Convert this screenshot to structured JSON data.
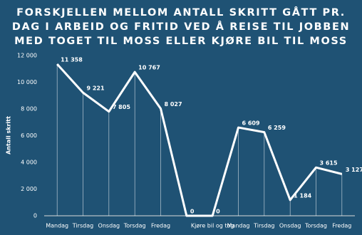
{
  "chart_data": {
    "type": "line",
    "title": [
      "FORSKJELLEN MELLOM ANTALL SKRITT GÅTT PR.",
      "DAG I ARBEID OG FRITID VED Å REISE TIL JOBBEN",
      "MED TOGET TIL MOSS ELLER KJØRE BIL TIL MOSS"
    ],
    "y_label": "Antall skritt",
    "categories": [
      "Mandag",
      "Tirsdag",
      "Onsdag",
      "Torsdag",
      "Fredag",
      null,
      "Kjøre bil og tog",
      "Mandag",
      "Tirsdag",
      "Onsdag",
      "Torsdag",
      "Fredag"
    ],
    "values": [
      11358,
      9221,
      7805,
      10767,
      8027,
      0,
      0,
      6609,
      6259,
      1184,
      3615,
      3127
    ],
    "value_labels": [
      "11 358",
      "9 221",
      "7 805",
      "10 767",
      "8 027",
      "0",
      "0",
      "6 609",
      "6 259",
      "1 184",
      "3 615",
      "3 127"
    ],
    "color": "#ffffff",
    "ylim": [
      0,
      12000
    ],
    "yticks": [
      0,
      {
        "value": 2000,
        "label": "2 000"
      },
      {
        "value": 4000,
        "label": "4 000"
      },
      {
        "value": 6000,
        "label": "6 000"
      },
      {
        "value": 8000,
        "label": "8 000"
      },
      {
        "value": 10000,
        "label": "10 000"
      },
      {
        "value": 12000,
        "label": "12 000"
      }
    ],
    "grid": true
  }
}
